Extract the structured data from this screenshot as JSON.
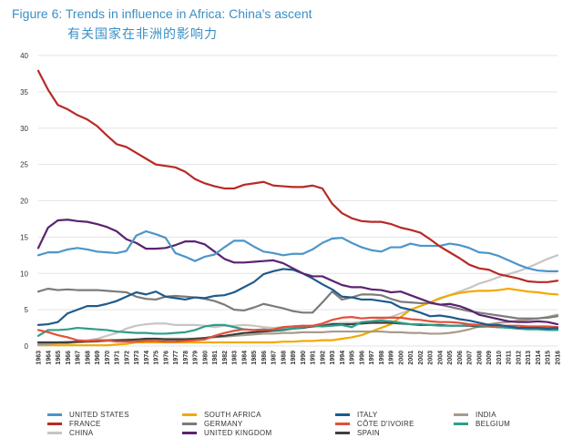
{
  "title": "Figure 6: Trends in influence in Africa: China's ascent",
  "subtitle": "有关国家在非洲的影响力",
  "chart_data": {
    "type": "line",
    "title": "Figure 6: Trends in influence in Africa: China's ascent",
    "subtitle": "有关国家在非洲的影响力",
    "xlabel": "",
    "ylabel": "",
    "ylim": [
      0,
      40
    ],
    "yticks": [
      0,
      5,
      10,
      15,
      20,
      25,
      30,
      35,
      40
    ],
    "xlim": [
      1963,
      2016
    ],
    "grid": "horizontal",
    "legend_position": "bottom",
    "x": [
      1963,
      1964,
      1965,
      1966,
      1967,
      1968,
      1969,
      1970,
      1971,
      1972,
      1973,
      1974,
      1975,
      1976,
      1977,
      1978,
      1979,
      1980,
      1981,
      1982,
      1983,
      1984,
      1985,
      1986,
      1987,
      1988,
      1989,
      1990,
      1991,
      1992,
      1993,
      1994,
      1995,
      1996,
      1997,
      1998,
      1999,
      2000,
      2001,
      2002,
      2003,
      2004,
      2005,
      2006,
      2007,
      2008,
      2009,
      2010,
      2011,
      2012,
      2013,
      2014,
      2015,
      2016
    ],
    "series": [
      {
        "name": "UNITED STATES",
        "color": "#4c95c8",
        "values": [
          12.5,
          12.9,
          12.9,
          13.3,
          13.5,
          13.3,
          13.0,
          12.9,
          12.8,
          13.1,
          15.2,
          15.8,
          15.4,
          14.9,
          12.8,
          12.3,
          11.7,
          12.3,
          12.6,
          13.6,
          14.5,
          14.5,
          13.7,
          13.0,
          12.8,
          12.5,
          12.7,
          12.7,
          13.3,
          14.2,
          14.8,
          14.9,
          14.2,
          13.6,
          13.2,
          13.0,
          13.6,
          13.6,
          14.1,
          13.8,
          13.8,
          13.8,
          14.1,
          13.9,
          13.5,
          12.9,
          12.8,
          12.4,
          11.8,
          11.2,
          10.7,
          10.4,
          10.3,
          10.3
        ]
      },
      {
        "name": "FRANCE",
        "color": "#b82a25",
        "values": [
          37.9,
          35.3,
          33.2,
          32.6,
          31.8,
          31.2,
          30.3,
          29.0,
          27.8,
          27.4,
          26.6,
          25.8,
          25.0,
          24.8,
          24.6,
          24.0,
          23.0,
          22.4,
          22.0,
          21.7,
          21.7,
          22.2,
          22.4,
          22.6,
          22.1,
          22.0,
          21.9,
          21.9,
          22.1,
          21.7,
          19.6,
          18.3,
          17.6,
          17.2,
          17.1,
          17.1,
          16.8,
          16.3,
          16.0,
          15.6,
          14.7,
          13.7,
          12.9,
          12.1,
          11.2,
          10.7,
          10.5,
          9.9,
          9.6,
          9.3,
          8.9,
          8.8,
          8.8,
          9.0
        ]
      },
      {
        "name": "CHINA",
        "color": "#c8c5c2",
        "values": [
          0.3,
          0.4,
          0.5,
          0.6,
          0.6,
          0.8,
          1.0,
          1.4,
          1.8,
          2.4,
          2.8,
          3.0,
          3.1,
          3.1,
          2.9,
          2.9,
          2.9,
          2.8,
          2.6,
          2.8,
          2.8,
          2.9,
          2.8,
          2.6,
          2.5,
          2.6,
          2.7,
          2.8,
          2.7,
          3.0,
          3.1,
          3.2,
          3.2,
          3.3,
          3.4,
          3.7,
          4.0,
          4.5,
          5.0,
          5.5,
          6.0,
          6.5,
          7.0,
          7.5,
          8.0,
          8.6,
          9.0,
          9.5,
          9.9,
          10.3,
          10.8,
          11.4,
          12.0,
          12.5
        ]
      },
      {
        "name": "SOUTH AFRICA",
        "color": "#f2a900",
        "values": [
          0.1,
          0.1,
          0.1,
          0.1,
          0.1,
          0.1,
          0.1,
          0.1,
          0.2,
          0.3,
          0.5,
          0.5,
          0.5,
          0.5,
          0.5,
          0.5,
          0.5,
          0.5,
          0.5,
          0.5,
          0.5,
          0.5,
          0.5,
          0.5,
          0.5,
          0.6,
          0.6,
          0.7,
          0.7,
          0.8,
          0.8,
          1.0,
          1.2,
          1.5,
          2.0,
          2.5,
          3.0,
          4.0,
          5.0,
          5.5,
          6.0,
          6.6,
          7.0,
          7.3,
          7.5,
          7.6,
          7.6,
          7.7,
          7.9,
          7.7,
          7.5,
          7.4,
          7.2,
          7.1
        ]
      },
      {
        "name": "GERMANY",
        "color": "#7b7b7b",
        "values": [
          7.5,
          7.9,
          7.7,
          7.8,
          7.7,
          7.7,
          7.7,
          7.6,
          7.5,
          7.4,
          6.8,
          6.5,
          6.4,
          6.8,
          6.9,
          6.8,
          6.7,
          6.5,
          6.2,
          5.7,
          5.0,
          4.9,
          5.3,
          5.8,
          5.5,
          5.2,
          4.8,
          4.6,
          4.6,
          6.0,
          7.5,
          6.4,
          6.7,
          7.1,
          7.1,
          7.0,
          6.5,
          6.1,
          6.0,
          5.9,
          5.9,
          5.7,
          5.4,
          5.1,
          4.8,
          4.6,
          4.4,
          4.2,
          4.0,
          3.8,
          3.8,
          3.8,
          3.9,
          4.1
        ]
      },
      {
        "name": "UNITED KINGDOM",
        "color": "#5a2370",
        "values": [
          13.5,
          16.3,
          17.3,
          17.4,
          17.2,
          17.1,
          16.8,
          16.4,
          15.8,
          14.7,
          14.2,
          13.4,
          13.4,
          13.5,
          13.9,
          14.4,
          14.4,
          14.0,
          13.0,
          12.0,
          11.5,
          11.5,
          11.6,
          11.7,
          11.8,
          11.4,
          10.7,
          10.0,
          9.6,
          9.6,
          9.0,
          8.4,
          8.1,
          8.1,
          7.8,
          7.7,
          7.4,
          7.5,
          7.0,
          6.5,
          6.0,
          5.7,
          5.8,
          5.5,
          5.0,
          4.3,
          4.0,
          3.7,
          3.4,
          3.3,
          3.3,
          3.4,
          3.3,
          3.0
        ]
      },
      {
        "name": "ITALY",
        "color": "#1e5b8c",
        "values": [
          2.9,
          3.0,
          3.3,
          4.5,
          5.0,
          5.5,
          5.5,
          5.8,
          6.2,
          6.8,
          7.4,
          7.1,
          7.5,
          6.8,
          6.6,
          6.4,
          6.7,
          6.6,
          6.9,
          7.0,
          7.4,
          8.1,
          8.8,
          9.9,
          10.3,
          10.6,
          10.5,
          10.0,
          9.3,
          8.5,
          7.8,
          6.8,
          6.7,
          6.4,
          6.4,
          6.2,
          6.0,
          5.3,
          5.0,
          4.6,
          4.1,
          4.2,
          4.0,
          3.7,
          3.5,
          3.2,
          2.9,
          2.9,
          2.7,
          2.5,
          2.5,
          2.5,
          2.4,
          2.5
        ]
      },
      {
        "name": "CÔTE D'IVOIRE",
        "color": "#e2513a",
        "values": [
          2.2,
          1.9,
          1.5,
          1.2,
          0.8,
          0.7,
          0.8,
          0.8,
          0.6,
          0.6,
          0.6,
          0.7,
          0.7,
          0.6,
          0.6,
          0.7,
          0.8,
          0.9,
          1.4,
          1.8,
          2.1,
          2.3,
          2.2,
          2.2,
          2.3,
          2.6,
          2.7,
          2.8,
          2.8,
          3.1,
          3.6,
          3.9,
          4.0,
          3.8,
          3.9,
          3.9,
          3.9,
          3.9,
          3.7,
          3.6,
          3.4,
          3.3,
          3.3,
          3.2,
          3.0,
          2.9,
          2.8,
          2.8,
          2.8,
          2.8,
          2.7,
          2.7,
          2.7,
          2.6
        ]
      },
      {
        "name": "SPAIN",
        "color": "#3f3f3f",
        "values": [
          0.5,
          0.5,
          0.5,
          0.5,
          0.6,
          0.6,
          0.7,
          0.8,
          0.8,
          0.8,
          0.9,
          1.0,
          1.0,
          0.9,
          0.9,
          0.9,
          1.0,
          1.1,
          1.3,
          1.4,
          1.6,
          1.8,
          1.9,
          2.0,
          2.1,
          2.2,
          2.4,
          2.5,
          2.7,
          2.8,
          3.0,
          3.0,
          3.0,
          3.1,
          3.2,
          3.2,
          3.2,
          3.1,
          3.0,
          2.9,
          2.9,
          2.9,
          2.8,
          2.8,
          2.8,
          2.7,
          2.7,
          2.6,
          2.6,
          2.5,
          2.5,
          2.4,
          2.4,
          2.4
        ]
      },
      {
        "name": "INDIA",
        "color": "#a89b8c",
        "values": [
          0.2,
          0.3,
          0.4,
          0.4,
          0.5,
          0.6,
          0.6,
          0.7,
          0.8,
          0.9,
          0.9,
          0.9,
          1.0,
          1.0,
          1.0,
          1.0,
          1.0,
          1.1,
          1.2,
          1.3,
          1.4,
          1.5,
          1.6,
          1.7,
          1.7,
          1.8,
          1.8,
          1.9,
          1.9,
          1.9,
          2.0,
          2.0,
          2.0,
          2.0,
          2.0,
          2.0,
          1.9,
          1.9,
          1.8,
          1.8,
          1.7,
          1.7,
          1.8,
          2.0,
          2.3,
          2.7,
          3.0,
          3.2,
          3.3,
          3.5,
          3.6,
          3.8,
          4.0,
          4.3
        ]
      },
      {
        "name": "BELGIUM",
        "color": "#2e9e8a",
        "values": [
          1.4,
          2.2,
          2.2,
          2.3,
          2.5,
          2.4,
          2.3,
          2.2,
          2.0,
          1.9,
          1.8,
          1.8,
          1.7,
          1.7,
          1.8,
          1.9,
          2.2,
          2.7,
          2.9,
          2.9,
          2.6,
          2.3,
          2.2,
          2.3,
          2.2,
          2.3,
          2.4,
          2.6,
          2.8,
          2.7,
          2.8,
          2.9,
          2.6,
          3.3,
          3.4,
          3.5,
          3.4,
          3.2,
          3.0,
          3.0,
          2.9,
          2.8,
          2.8,
          2.8,
          2.9,
          2.8,
          2.7,
          2.6,
          2.5,
          2.4,
          2.3,
          2.3,
          2.2,
          2.2
        ]
      }
    ]
  }
}
